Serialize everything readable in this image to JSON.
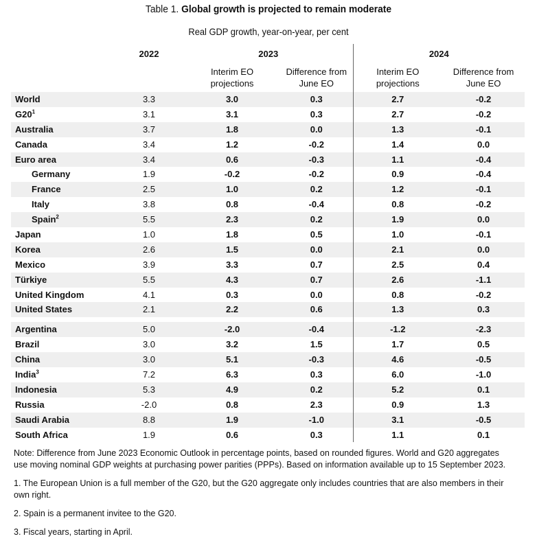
{
  "title": {
    "prefix": "Table 1. ",
    "main": "Global growth is projected to remain moderate"
  },
  "subtitle": "Real GDP growth, year-on-year, per cent",
  "years": {
    "y2022": "2022",
    "y2023": "2023",
    "y2024": "2024"
  },
  "subheaders": {
    "interim_1": "Interim EO",
    "interim_2": "projections",
    "diff_1": "Difference from",
    "diff_2": "June EO"
  },
  "rows_group1": [
    {
      "name": "World",
      "v2022": "3.3",
      "p2023": "3.0",
      "d2023": "0.3",
      "p2024": "2.7",
      "d2024": "-0.2"
    },
    {
      "name": "G20",
      "sup": "1",
      "v2022": "3.1",
      "p2023": "3.1",
      "d2023": "0.3",
      "p2024": "2.7",
      "d2024": "-0.2"
    },
    {
      "name": "Australia",
      "v2022": "3.7",
      "p2023": "1.8",
      "d2023": "0.0",
      "p2024": "1.3",
      "d2024": "-0.1"
    },
    {
      "name": "Canada",
      "v2022": "3.4",
      "p2023": "1.2",
      "d2023": "-0.2",
      "p2024": "1.4",
      "d2024": "0.0"
    },
    {
      "name": "Euro area",
      "v2022": "3.4",
      "p2023": "0.6",
      "d2023": "-0.3",
      "p2024": "1.1",
      "d2024": "-0.4"
    },
    {
      "name": "Germany",
      "indent": true,
      "v2022": "1.9",
      "p2023": "-0.2",
      "d2023": "-0.2",
      "p2024": "0.9",
      "d2024": "-0.4"
    },
    {
      "name": "France",
      "indent": true,
      "v2022": "2.5",
      "p2023": "1.0",
      "d2023": "0.2",
      "p2024": "1.2",
      "d2024": "-0.1"
    },
    {
      "name": "Italy",
      "indent": true,
      "v2022": "3.8",
      "p2023": "0.8",
      "d2023": "-0.4",
      "p2024": "0.8",
      "d2024": "-0.2"
    },
    {
      "name": "Spain",
      "sup": "2",
      "indent": true,
      "v2022": "5.5",
      "p2023": "2.3",
      "d2023": "0.2",
      "p2024": "1.9",
      "d2024": "0.0"
    },
    {
      "name": "Japan",
      "v2022": "1.0",
      "p2023": "1.8",
      "d2023": "0.5",
      "p2024": "1.0",
      "d2024": "-0.1"
    },
    {
      "name": "Korea",
      "v2022": "2.6",
      "p2023": "1.5",
      "d2023": "0.0",
      "p2024": "2.1",
      "d2024": "0.0"
    },
    {
      "name": "Mexico",
      "v2022": "3.9",
      "p2023": "3.3",
      "d2023": "0.7",
      "p2024": "2.5",
      "d2024": "0.4"
    },
    {
      "name": "Türkiye",
      "v2022": "5.5",
      "p2023": "4.3",
      "d2023": "0.7",
      "p2024": "2.6",
      "d2024": "-1.1"
    },
    {
      "name": "United Kingdom",
      "v2022": "4.1",
      "p2023": "0.3",
      "d2023": "0.0",
      "p2024": "0.8",
      "d2024": "-0.2"
    },
    {
      "name": "United States",
      "v2022": "2.1",
      "p2023": "2.2",
      "d2023": "0.6",
      "p2024": "1.3",
      "d2024": "0.3"
    }
  ],
  "rows_group2": [
    {
      "name": "Argentina",
      "v2022": "5.0",
      "p2023": "-2.0",
      "d2023": "-0.4",
      "p2024": "-1.2",
      "d2024": "-2.3"
    },
    {
      "name": "Brazil",
      "v2022": "3.0",
      "p2023": "3.2",
      "d2023": "1.5",
      "p2024": "1.7",
      "d2024": "0.5"
    },
    {
      "name": "China",
      "v2022": "3.0",
      "p2023": "5.1",
      "d2023": "-0.3",
      "p2024": "4.6",
      "d2024": "-0.5"
    },
    {
      "name": "India",
      "sup": "3",
      "v2022": "7.2",
      "p2023": "6.3",
      "d2023": "0.3",
      "p2024": "6.0",
      "d2024": "-1.0"
    },
    {
      "name": "Indonesia",
      "v2022": "5.3",
      "p2023": "4.9",
      "d2023": "0.2",
      "p2024": "5.2",
      "d2024": "0.1"
    },
    {
      "name": "Russia",
      "v2022": "-2.0",
      "p2023": "0.8",
      "d2023": "2.3",
      "p2024": "0.9",
      "d2024": "1.3"
    },
    {
      "name": "Saudi Arabia",
      "v2022": "8.8",
      "p2023": "1.9",
      "d2023": "-1.0",
      "p2024": "3.1",
      "d2024": "-0.5"
    },
    {
      "name": "South Africa",
      "v2022": "1.9",
      "p2023": "0.6",
      "d2023": "0.3",
      "p2024": "1.1",
      "d2024": "0.1"
    }
  ],
  "notes": {
    "main": "Note: Difference from June 2023 Economic Outlook in percentage points, based on rounded figures. World and G20 aggregates use moving nominal GDP weights at purchasing power parities (PPPs). Based on information available up to 15 September 2023.",
    "fn1": "1. The European Union is a full member of the G20, but the G20 aggregate only includes countries that are also members in their own right.",
    "fn2": "2. Spain is a permanent invitee to the G20.",
    "fn3": "3. Fiscal years, starting in April."
  }
}
